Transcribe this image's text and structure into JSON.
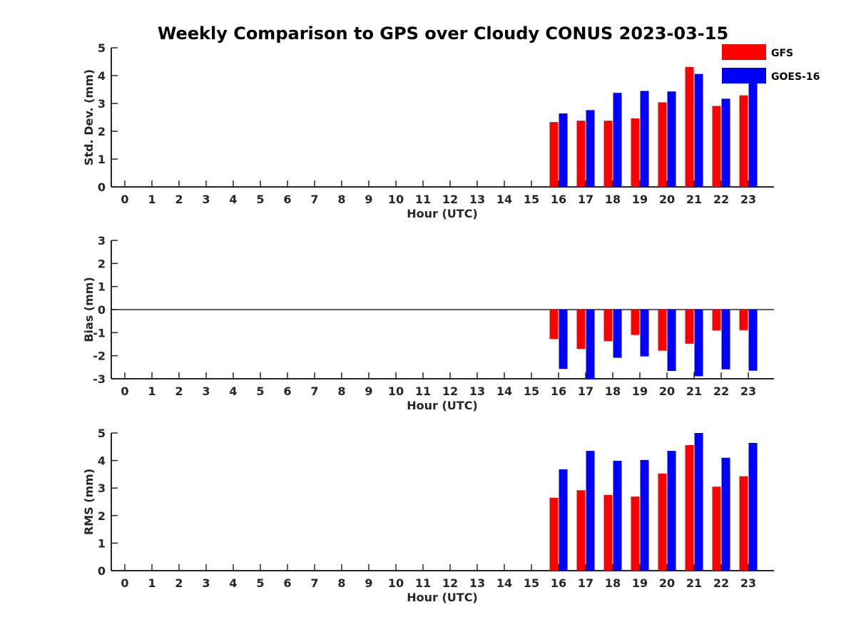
{
  "figure": {
    "title": "Weekly Comparison to GPS over Cloudy CONUS 2023-03-15"
  },
  "legend": {
    "placement": "top-right",
    "entries": [
      {
        "name": "GFS",
        "color": "#ff0000"
      },
      {
        "name": "GOES-16",
        "color": "#0000ff"
      }
    ]
  },
  "chart_data": [
    {
      "type": "bar",
      "panel": "stddev",
      "xlabel": "Hour (UTC)",
      "ylabel": "Std. Dev. (mm)",
      "ylim": [
        0,
        5
      ],
      "yticks": [
        "0",
        "1",
        "2",
        "3",
        "4",
        "5"
      ],
      "categories": [
        "0",
        "1",
        "2",
        "3",
        "4",
        "5",
        "6",
        "7",
        "8",
        "9",
        "10",
        "11",
        "12",
        "13",
        "14",
        "15",
        "16",
        "17",
        "18",
        "19",
        "20",
        "21",
        "22",
        "23"
      ],
      "series": [
        {
          "name": "GFS",
          "color": "#ff0000",
          "values": [
            null,
            null,
            null,
            null,
            null,
            null,
            null,
            null,
            null,
            null,
            null,
            null,
            null,
            null,
            null,
            null,
            2.33,
            2.38,
            2.38,
            2.46,
            3.04,
            4.31,
            2.91,
            3.29
          ]
        },
        {
          "name": "GOES-16",
          "color": "#0000ff",
          "values": [
            null,
            null,
            null,
            null,
            null,
            null,
            null,
            null,
            null,
            null,
            null,
            null,
            null,
            null,
            null,
            null,
            2.64,
            2.76,
            3.38,
            3.45,
            3.43,
            4.06,
            3.17,
            3.95
          ]
        }
      ],
      "grid": false
    },
    {
      "type": "bar",
      "panel": "bias",
      "xlabel": "Hour (UTC)",
      "ylabel": "Bias (mm)",
      "ylim": [
        -3,
        3
      ],
      "yticks": [
        "-3",
        "-2",
        "-1",
        "0",
        "1",
        "2",
        "3"
      ],
      "zero_line": true,
      "categories": [
        "0",
        "1",
        "2",
        "3",
        "4",
        "5",
        "6",
        "7",
        "8",
        "9",
        "10",
        "11",
        "12",
        "13",
        "14",
        "15",
        "16",
        "17",
        "18",
        "19",
        "20",
        "21",
        "22",
        "23"
      ],
      "series": [
        {
          "name": "GFS",
          "color": "#ff0000",
          "values": [
            null,
            null,
            null,
            null,
            null,
            null,
            null,
            null,
            null,
            null,
            null,
            null,
            null,
            null,
            null,
            null,
            -1.27,
            -1.7,
            -1.37,
            -1.1,
            -1.78,
            -1.48,
            -0.9,
            -0.89
          ]
        },
        {
          "name": "GOES-16",
          "color": "#0000ff",
          "values": [
            null,
            null,
            null,
            null,
            null,
            null,
            null,
            null,
            null,
            null,
            null,
            null,
            null,
            null,
            null,
            null,
            -2.57,
            -3.0,
            -2.09,
            -2.03,
            -2.66,
            -2.89,
            -2.59,
            -2.65
          ]
        }
      ],
      "grid": false
    },
    {
      "type": "bar",
      "panel": "rms",
      "xlabel": "Hour (UTC)",
      "ylabel": "RMS (mm)",
      "ylim": [
        0,
        5
      ],
      "yticks": [
        "0",
        "1",
        "2",
        "3",
        "4",
        "5"
      ],
      "categories": [
        "0",
        "1",
        "2",
        "3",
        "4",
        "5",
        "6",
        "7",
        "8",
        "9",
        "10",
        "11",
        "12",
        "13",
        "14",
        "15",
        "16",
        "17",
        "18",
        "19",
        "20",
        "21",
        "22",
        "23"
      ],
      "series": [
        {
          "name": "GFS",
          "color": "#ff0000",
          "values": [
            null,
            null,
            null,
            null,
            null,
            null,
            null,
            null,
            null,
            null,
            null,
            null,
            null,
            null,
            null,
            null,
            2.65,
            2.92,
            2.75,
            2.69,
            3.53,
            4.56,
            3.05,
            3.43
          ]
        },
        {
          "name": "GOES-16",
          "color": "#0000ff",
          "values": [
            null,
            null,
            null,
            null,
            null,
            null,
            null,
            null,
            null,
            null,
            null,
            null,
            null,
            null,
            null,
            null,
            3.68,
            4.35,
            3.99,
            4.02,
            4.35,
            5.0,
            4.1,
            4.64
          ]
        }
      ],
      "grid": false
    }
  ]
}
